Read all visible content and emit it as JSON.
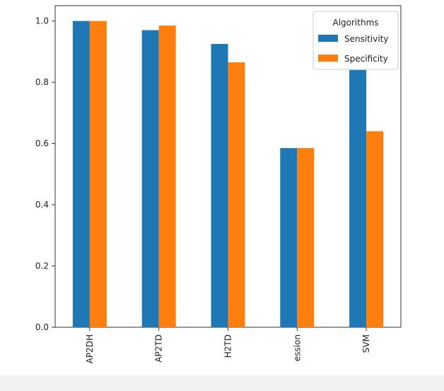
{
  "chart_data": {
    "type": "bar",
    "title": "",
    "xlabel": "",
    "ylabel": "",
    "categories": [
      "AP2DH",
      "AP2TD",
      "H2TD",
      "ession",
      "SVM"
    ],
    "series": [
      {
        "name": "Sensitivity",
        "values": [
          1.0,
          0.97,
          0.925,
          0.585,
          0.84
        ],
        "color": "#1f77b4"
      },
      {
        "name": "Specificity",
        "values": [
          1.0,
          0.985,
          0.865,
          0.585,
          0.64
        ],
        "color": "#ff7f0e"
      }
    ],
    "ylim": [
      0,
      1.05
    ],
    "yticks": [
      "0.0",
      "0.2",
      "0.4",
      "0.6",
      "0.8",
      "1.0"
    ],
    "legend": {
      "title": "Algorithms",
      "placement": "top-right"
    },
    "grid": false
  }
}
